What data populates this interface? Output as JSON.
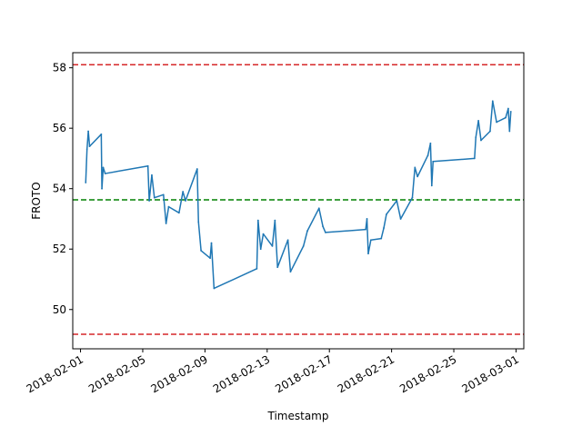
{
  "chart_data": {
    "type": "line",
    "title": "",
    "xlabel": "Timestamp",
    "ylabel": "FROTO",
    "x_type": "date",
    "xlim": [
      "2018-01-31T12:00",
      "2018-03-01T12:00"
    ],
    "ylim": [
      48.7,
      58.5
    ],
    "x_ticks": [
      "2018-02-01",
      "2018-02-05",
      "2018-02-09",
      "2018-02-13",
      "2018-02-17",
      "2018-02-21",
      "2018-02-25",
      "2018-03-01"
    ],
    "y_ticks": [
      50,
      52,
      54,
      56,
      58
    ],
    "grid": false,
    "legend": "none",
    "colors": {
      "series": "#1f77b4",
      "band": "#d62728",
      "mean": "#008000",
      "frame": "#000000"
    },
    "reference_lines": [
      {
        "style": "dashed",
        "color": "#d62728",
        "y": 58.1
      },
      {
        "style": "dashed",
        "color": "#008000",
        "y": 53.63
      },
      {
        "style": "dashed",
        "color": "#d62728",
        "y": 49.18
      }
    ],
    "series": [
      {
        "color": "#1f77b4",
        "points": [
          [
            "2018-02-01T08:00",
            54.2
          ],
          [
            "2018-02-01T10:00",
            55.3
          ],
          [
            "2018-02-01T12:00",
            55.9
          ],
          [
            "2018-02-01T14:00",
            55.4
          ],
          [
            "2018-02-02T08:00",
            55.8
          ],
          [
            "2018-02-02T09:00",
            54.0
          ],
          [
            "2018-02-02T11:00",
            54.7
          ],
          [
            "2018-02-02T14:00",
            54.5
          ],
          [
            "2018-02-05T08:00",
            54.75
          ],
          [
            "2018-02-05T10:00",
            53.6
          ],
          [
            "2018-02-05T14:00",
            54.45
          ],
          [
            "2018-02-05T18:00",
            53.7
          ],
          [
            "2018-02-06T08:00",
            53.8
          ],
          [
            "2018-02-06T12:00",
            52.85
          ],
          [
            "2018-02-06T16:00",
            53.4
          ],
          [
            "2018-02-07T08:00",
            53.2
          ],
          [
            "2018-02-07T14:00",
            53.9
          ],
          [
            "2018-02-07T18:00",
            53.6
          ],
          [
            "2018-02-08T12:00",
            54.65
          ],
          [
            "2018-02-08T14:00",
            52.9
          ],
          [
            "2018-02-08T18:00",
            51.95
          ],
          [
            "2018-02-09T08:00",
            51.7
          ],
          [
            "2018-02-09T10:00",
            52.2
          ],
          [
            "2018-02-09T14:00",
            50.7
          ],
          [
            "2018-02-12T08:00",
            51.35
          ],
          [
            "2018-02-12T10:00",
            52.95
          ],
          [
            "2018-02-12T14:00",
            52.0
          ],
          [
            "2018-02-12T18:00",
            52.5
          ],
          [
            "2018-02-13T08:00",
            52.1
          ],
          [
            "2018-02-13T12:00",
            52.95
          ],
          [
            "2018-02-13T16:00",
            51.4
          ],
          [
            "2018-02-14T08:00",
            52.3
          ],
          [
            "2018-02-14T12:00",
            51.25
          ],
          [
            "2018-02-15T08:00",
            52.1
          ],
          [
            "2018-02-15T14:00",
            52.6
          ],
          [
            "2018-02-16T08:00",
            53.35
          ],
          [
            "2018-02-16T14:00",
            52.75
          ],
          [
            "2018-02-16T18:00",
            52.55
          ],
          [
            "2018-02-19T08:00",
            52.65
          ],
          [
            "2018-02-19T10:00",
            53.0
          ],
          [
            "2018-02-19T12:00",
            51.85
          ],
          [
            "2018-02-19T16:00",
            52.3
          ],
          [
            "2018-02-20T08:00",
            52.35
          ],
          [
            "2018-02-20T12:00",
            52.7
          ],
          [
            "2018-02-20T16:00",
            53.15
          ],
          [
            "2018-02-21T08:00",
            53.6
          ],
          [
            "2018-02-21T14:00",
            53.0
          ],
          [
            "2018-02-22T08:00",
            53.7
          ],
          [
            "2018-02-22T12:00",
            54.7
          ],
          [
            "2018-02-22T16:00",
            54.4
          ],
          [
            "2018-02-23T08:00",
            55.1
          ],
          [
            "2018-02-23T12:00",
            55.5
          ],
          [
            "2018-02-23T14:00",
            54.1
          ],
          [
            "2018-02-23T16:00",
            54.9
          ],
          [
            "2018-02-26T08:00",
            55.0
          ],
          [
            "2018-02-26T10:00",
            55.7
          ],
          [
            "2018-02-26T14:00",
            56.25
          ],
          [
            "2018-02-26T18:00",
            55.6
          ],
          [
            "2018-02-27T08:00",
            55.9
          ],
          [
            "2018-02-27T12:00",
            56.9
          ],
          [
            "2018-02-27T18:00",
            56.2
          ],
          [
            "2018-02-28T08:00",
            56.35
          ],
          [
            "2018-02-28T12:00",
            56.65
          ],
          [
            "2018-02-28T14:00",
            55.9
          ],
          [
            "2018-02-28T16:00",
            56.55
          ]
        ]
      }
    ]
  }
}
